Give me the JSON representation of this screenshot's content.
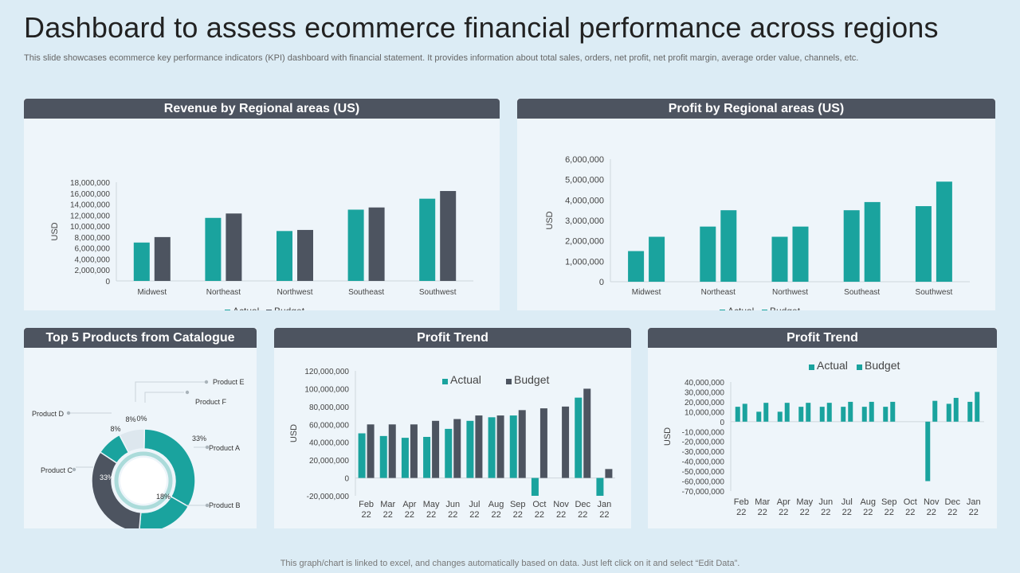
{
  "header": {
    "title": "Dashboard to assess ecommerce financial performance across regions",
    "subtitle": "This slide showcases ecommerce key performance indicators (KPI) dashboard with financial statement. It provides information about total sales, orders, net profit, net profit margin, average order value, channels, etc."
  },
  "footer": {
    "text": "This graph/chart is linked to excel,  and changes automatically based on data. Just left click on it and select “Edit Data”."
  },
  "colors": {
    "actual": "#1aa39e",
    "budget_dark": "#4d5460",
    "budget_teal": "#1aa39e",
    "header": "#4d5460"
  },
  "chart_data": [
    {
      "id": "revenue",
      "type": "bar",
      "title": "Revenue by Regional areas (US)",
      "ylabel": "USD",
      "categories": [
        "Midwest",
        "Northeast",
        "Northwest",
        "Southeast",
        "Southwest"
      ],
      "series": [
        {
          "name": "Actual",
          "values": [
            7000000,
            11500000,
            9100000,
            13000000,
            15000000
          ]
        },
        {
          "name": "Budget",
          "values": [
            8000000,
            12300000,
            9300000,
            13400000,
            16400000
          ]
        }
      ],
      "ylim": [
        0,
        18000000
      ],
      "ticks": [
        0,
        2000000,
        4000000,
        6000000,
        8000000,
        10000000,
        12000000,
        14000000,
        16000000,
        18000000
      ],
      "tick_labels": [
        "0",
        "2,000,000",
        "4,000,000",
        "6,000,000",
        "8,000,000",
        "10,000,000",
        "12,000,000",
        "14,000,000",
        "16,000,000",
        "18,000,000"
      ],
      "legend": [
        "Actual",
        "Budget"
      ]
    },
    {
      "id": "profit",
      "type": "bar",
      "title": "Profit by Regional areas (US)",
      "ylabel": "USD",
      "categories": [
        "Midwest",
        "Northeast",
        "Northwest",
        "Southeast",
        "Southwest"
      ],
      "series": [
        {
          "name": "Actual",
          "values": [
            1500000,
            2700000,
            2200000,
            3500000,
            3700000
          ]
        },
        {
          "name": "Budget",
          "values": [
            2200000,
            3500000,
            2700000,
            3900000,
            4900000
          ]
        }
      ],
      "ylim": [
        0,
        6000000
      ],
      "ticks": [
        0,
        1000000,
        2000000,
        3000000,
        4000000,
        5000000,
        6000000
      ],
      "tick_labels": [
        "0",
        "1,000,000",
        "2,000,000",
        "3,000,000",
        "4,000,000",
        "5,000,000",
        "6,000,000"
      ],
      "legend": [
        "Actual",
        "Budget"
      ]
    },
    {
      "id": "products",
      "type": "pie",
      "title": "Top 5 Products from Catalogue",
      "labels": [
        "Product A",
        "Product B",
        "Product C",
        "Product D",
        "Product E",
        "Product F"
      ],
      "values": [
        33,
        18,
        33,
        8,
        8,
        0
      ],
      "value_labels": [
        "33%",
        "18%",
        "33%",
        "8%",
        "8%",
        "0%"
      ]
    },
    {
      "id": "trend1",
      "type": "bar",
      "title": "Profit Trend",
      "ylabel": "USD",
      "categories": [
        "Feb 22",
        "Mar 22",
        "Apr 22",
        "May 22",
        "Jun 22",
        "Jul 22",
        "Aug 22",
        "Sep 22",
        "Oct 22",
        "Nov 22",
        "Dec 22",
        "Jan 22"
      ],
      "series": [
        {
          "name": "Actual",
          "values": [
            50000000,
            47000000,
            45000000,
            46000000,
            55000000,
            64000000,
            68000000,
            70000000,
            -20000000,
            0,
            90000000,
            -20000000
          ]
        },
        {
          "name": "Budget",
          "values": [
            60000000,
            60000000,
            60000000,
            64000000,
            66000000,
            70000000,
            70000000,
            76000000,
            78000000,
            80000000,
            100000000,
            10000000
          ]
        }
      ],
      "ylim": [
        -20000000,
        120000000
      ],
      "ticks": [
        -20000000,
        0,
        20000000,
        40000000,
        60000000,
        80000000,
        100000000,
        120000000
      ],
      "tick_labels": [
        "-20,000,000",
        "0",
        "20,000,000",
        "40,000,000",
        "60,000,000",
        "80,000,000",
        "100,000,000",
        "120,000,000"
      ],
      "legend": [
        "Actual",
        "Budget"
      ]
    },
    {
      "id": "trend2",
      "type": "bar",
      "title": "Profit Trend",
      "ylabel": "USD",
      "categories": [
        "Feb 22",
        "Mar 22",
        "Apr 22",
        "May 22",
        "Jun 22",
        "Jul 22",
        "Aug 22",
        "Sep 22",
        "Oct 22",
        "Nov 22",
        "Dec 22",
        "Jan 22"
      ],
      "series": [
        {
          "name": "Actual",
          "values": [
            15000000,
            10000000,
            10000000,
            15000000,
            15000000,
            15000000,
            15000000,
            15000000,
            0,
            -60000000,
            18000000,
            20000000
          ]
        },
        {
          "name": "Budget",
          "values": [
            18000000,
            19000000,
            19000000,
            19000000,
            19000000,
            20000000,
            20000000,
            20000000,
            0,
            21000000,
            24000000,
            30000000
          ]
        }
      ],
      "ylim": [
        -70000000,
        40000000
      ],
      "ticks": [
        -70000000,
        -60000000,
        -50000000,
        -40000000,
        -30000000,
        -20000000,
        -10000000,
        0,
        10000000,
        20000000,
        30000000,
        40000000
      ],
      "tick_labels": [
        "-70,000,000",
        "-60,000,000",
        "-50,000,000",
        "-40,000,000",
        "-30,000,000",
        "-20,000,000",
        "-10,000,000",
        "0",
        "10,000,000",
        "20,000,000",
        "30,000,000",
        "40,000,000"
      ],
      "legend": [
        "Actual",
        "Budget"
      ]
    }
  ]
}
